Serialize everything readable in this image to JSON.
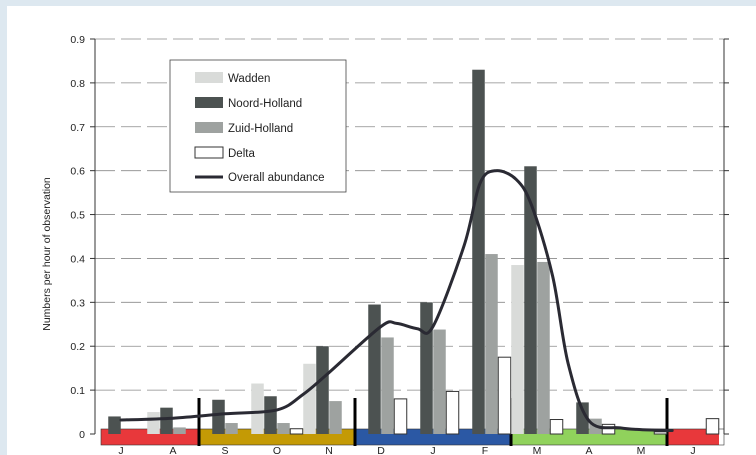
{
  "chart_data": {
    "type": "bar",
    "ylabel": "Numbers per hour of observation",
    "xlabel": "",
    "ylim": [
      0,
      0.9
    ],
    "yticks": [
      0,
      0.1,
      0.2,
      0.3,
      0.4,
      0.5,
      0.6,
      0.7,
      0.8,
      0.9
    ],
    "ytick_labels": [
      "0",
      "0.1",
      "0.2",
      "0.3",
      "0.4",
      "0.5",
      "0.6",
      "0.7",
      "0.8",
      "0.9"
    ],
    "grid": "horizontal dashed",
    "legend_position": "top-left",
    "categories": [
      "J",
      "A",
      "S",
      "O",
      "N",
      "D",
      "J",
      "F",
      "M",
      "A",
      "M",
      "J"
    ],
    "series": [
      {
        "name": "Wadden",
        "color": "#d9dbd9",
        "values": [
          0.0,
          0.05,
          0.0,
          0.115,
          0.16,
          0.0,
          0.0,
          0.0,
          0.385,
          0.0,
          0.0,
          0.0
        ]
      },
      {
        "name": "Noord-Holland",
        "color": "#4c5251",
        "values": [
          0.04,
          0.06,
          0.078,
          0.086,
          0.2,
          0.295,
          0.3,
          0.83,
          0.61,
          0.072,
          0.0,
          0.0
        ]
      },
      {
        "name": "Zuid-Holland",
        "color": "#9ea2a0",
        "values": [
          0.0,
          0.015,
          0.025,
          0.025,
          0.075,
          0.22,
          0.238,
          0.41,
          0.392,
          0.035,
          0.0,
          0.0
        ]
      },
      {
        "name": "Delta",
        "color": "#ffffff",
        "values": [
          0.0,
          0.0,
          0.0,
          0.012,
          0.0,
          0.08,
          0.097,
          0.175,
          0.033,
          0.022,
          0.005,
          0.035
        ]
      }
    ],
    "line": {
      "name": "Overall abundance",
      "color": "#2a2a33",
      "x": [
        0.0,
        1.0,
        2.0,
        3.0,
        3.5,
        4.0,
        5.0,
        5.3,
        5.7,
        6.0,
        6.6,
        6.9,
        7.2,
        7.6,
        7.9,
        8.3,
        8.6,
        9.0,
        9.6,
        10.0,
        10.6
      ],
      "y": [
        0.032,
        0.036,
        0.046,
        0.055,
        0.09,
        0.14,
        0.245,
        0.252,
        0.24,
        0.245,
        0.43,
        0.57,
        0.6,
        0.58,
        0.52,
        0.36,
        0.16,
        0.03,
        0.014,
        0.01,
        0.008
      ]
    },
    "season_bands": [
      {
        "from": -0.5,
        "to": 1.5,
        "color": "#e8383b"
      },
      {
        "from": 1.5,
        "to": 4.5,
        "color": "#c49a05"
      },
      {
        "from": 4.5,
        "to": 7.5,
        "color": "#2b58a4"
      },
      {
        "from": 7.5,
        "to": 10.5,
        "color": "#90d25c"
      },
      {
        "from": 10.5,
        "to": 11.5,
        "color": "#e8383b"
      }
    ],
    "season_dividers": [
      1.5,
      4.5,
      7.5,
      10.5
    ]
  }
}
